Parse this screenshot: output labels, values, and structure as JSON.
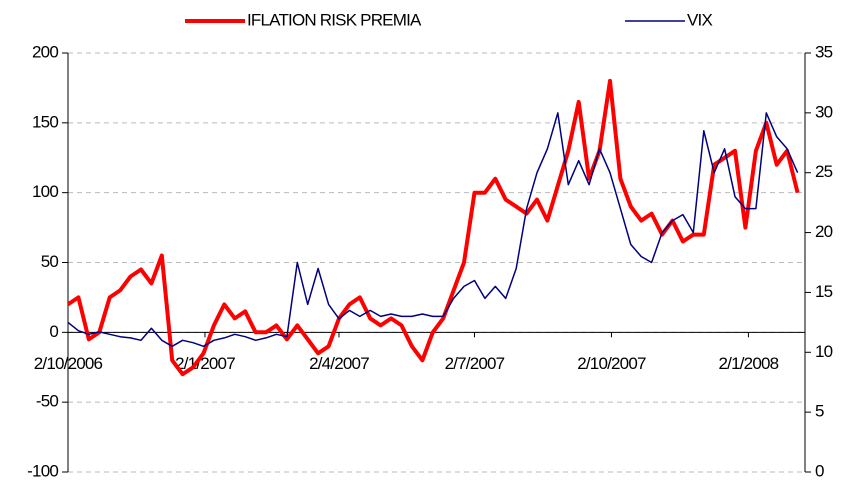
{
  "chart_data": {
    "type": "line",
    "x": [
      "2006-10-02",
      "2006-10-09",
      "2006-10-16",
      "2006-10-23",
      "2006-10-30",
      "2006-11-06",
      "2006-11-13",
      "2006-11-20",
      "2006-11-27",
      "2006-12-04",
      "2006-12-11",
      "2006-12-18",
      "2006-12-25",
      "2007-01-01",
      "2007-01-08",
      "2007-01-15",
      "2007-01-22",
      "2007-01-29",
      "2007-02-05",
      "2007-02-12",
      "2007-02-19",
      "2007-02-26",
      "2007-03-05",
      "2007-03-12",
      "2007-03-19",
      "2007-03-26",
      "2007-04-02",
      "2007-04-09",
      "2007-04-16",
      "2007-04-23",
      "2007-04-30",
      "2007-05-07",
      "2007-05-14",
      "2007-05-21",
      "2007-05-28",
      "2007-06-04",
      "2007-06-11",
      "2007-06-18",
      "2007-06-25",
      "2007-07-02",
      "2007-07-09",
      "2007-07-16",
      "2007-07-23",
      "2007-07-30",
      "2007-08-06",
      "2007-08-13",
      "2007-08-20",
      "2007-08-27",
      "2007-09-03",
      "2007-09-10",
      "2007-09-17",
      "2007-09-24",
      "2007-10-01",
      "2007-10-08",
      "2007-10-15",
      "2007-10-22",
      "2007-10-29",
      "2007-11-05",
      "2007-11-12",
      "2007-11-19",
      "2007-11-26",
      "2007-12-03",
      "2007-12-10",
      "2007-12-17",
      "2007-12-24",
      "2007-12-31",
      "2008-01-07",
      "2008-01-14",
      "2008-01-21",
      "2008-01-28",
      "2008-02-04"
    ],
    "series": [
      {
        "name": "IFLATION RISK PREMIA",
        "color": "#ff0000",
        "axis": "y",
        "values": [
          20,
          25,
          -5,
          0,
          25,
          30,
          40,
          45,
          35,
          55,
          -20,
          -30,
          -25,
          -15,
          5,
          20,
          10,
          15,
          0,
          0,
          5,
          -5,
          5,
          -5,
          -15,
          -10,
          10,
          20,
          25,
          10,
          5,
          10,
          5,
          -10,
          -20,
          0,
          10,
          30,
          50,
          100,
          100,
          110,
          95,
          90,
          85,
          95,
          80,
          105,
          130,
          165,
          110,
          130,
          180,
          110,
          90,
          80,
          85,
          70,
          80,
          65,
          70,
          70,
          120,
          125,
          130,
          75,
          130,
          150,
          120,
          130,
          100
        ]
      },
      {
        "name": "VIX",
        "color": "#000080",
        "axis": "y2",
        "values": [
          12.5,
          11.8,
          11.5,
          11.7,
          11.5,
          11.3,
          11.2,
          11,
          12,
          11,
          10.5,
          11,
          10.8,
          10.5,
          11,
          11.2,
          11.5,
          11.3,
          11,
          11.2,
          11.5,
          11.3,
          17.5,
          14,
          17,
          14,
          12.8,
          13.5,
          13,
          13.5,
          13,
          13.2,
          13,
          13,
          13.2,
          13,
          13,
          14.5,
          15.5,
          16,
          14.5,
          15.5,
          14.5,
          17,
          22,
          25,
          27,
          30,
          24,
          26,
          24,
          27,
          25,
          22,
          19,
          18,
          17.5,
          20,
          21,
          21.5,
          20,
          28.5,
          25,
          27,
          23,
          22,
          22,
          30,
          28,
          27,
          25
        ]
      }
    ],
    "xlim": [
      "2006-10-02",
      "2008-02-09"
    ],
    "xticks": [
      {
        "value": "2006-10-02",
        "label": "2/10/2006"
      },
      {
        "value": "2007-01-02",
        "label": "2/1/2007"
      },
      {
        "value": "2007-04-02",
        "label": "2/4/2007"
      },
      {
        "value": "2007-07-02",
        "label": "2/7/2007"
      },
      {
        "value": "2007-10-02",
        "label": "2/10/2007"
      },
      {
        "value": "2008-01-02",
        "label": "2/1/2008"
      }
    ],
    "ylim": [
      -100,
      200
    ],
    "yticks": [
      -100,
      -50,
      0,
      50,
      100,
      150,
      200
    ],
    "y2lim": [
      0,
      35
    ],
    "y2ticks": [
      0,
      5,
      10,
      15,
      20,
      25,
      30,
      35
    ],
    "grid": true,
    "legend": "top"
  }
}
